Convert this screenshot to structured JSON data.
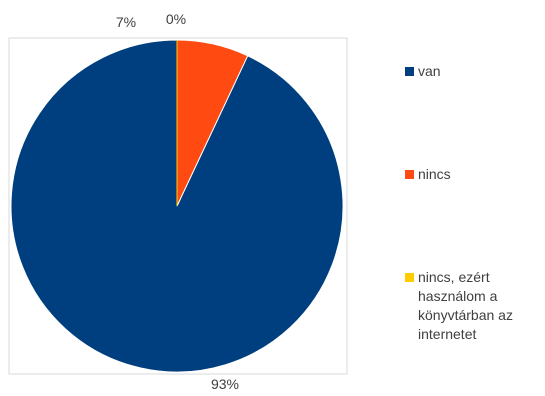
{
  "chart_data": {
    "type": "pie",
    "categories": [
      "van",
      "nincs",
      "nincs, ezért használom a könyvtárban az internetet"
    ],
    "values": [
      93,
      7,
      0
    ],
    "data_labels": [
      "93%",
      "7%",
      "0%"
    ],
    "colors": [
      "#003F7F",
      "#FF4A12",
      "#FFCC00"
    ],
    "legend_position": "right",
    "start_angle": "top",
    "direction": "counterclockwise"
  }
}
